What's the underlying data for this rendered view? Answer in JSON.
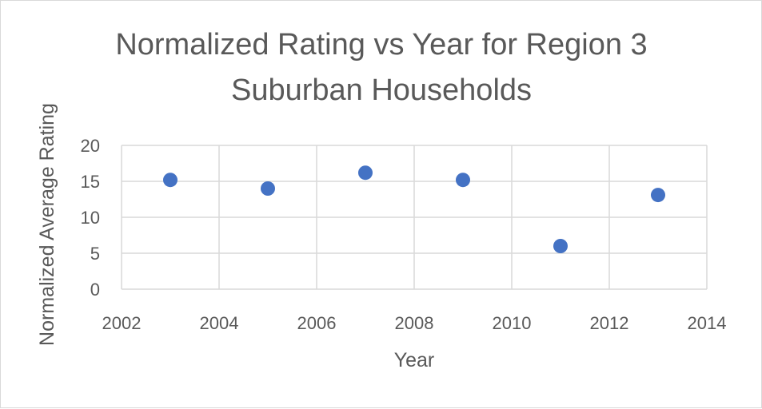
{
  "chart_data": {
    "type": "scatter",
    "title_lines": [
      "Normalized Rating vs Year for Region 3",
      "Suburban Households"
    ],
    "xlabel": "Year",
    "ylabel": "Normalized Average Rating",
    "xlim": [
      2002,
      2014
    ],
    "ylim": [
      0,
      20
    ],
    "xticks": [
      2002,
      2004,
      2006,
      2008,
      2010,
      2012,
      2014
    ],
    "yticks": [
      0,
      5,
      10,
      15,
      20
    ],
    "grid": true,
    "legend": "none",
    "series": [
      {
        "x": [
          2003,
          2005,
          2007,
          2009,
          2011,
          2013
        ],
        "y": [
          15.2,
          14.0,
          16.2,
          15.2,
          6.0,
          13.1
        ],
        "color": "#4472c4"
      }
    ]
  }
}
